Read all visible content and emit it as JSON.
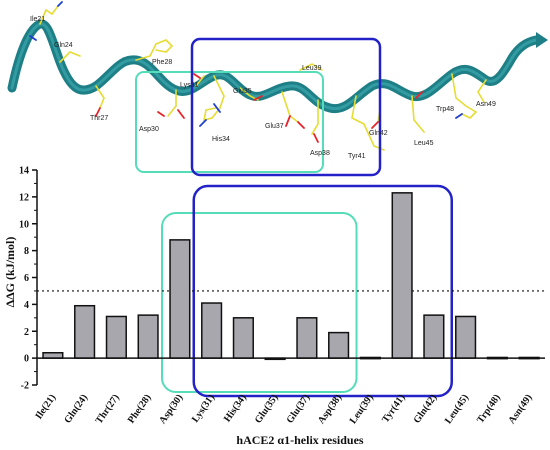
{
  "structure": {
    "residue_labels": [
      {
        "id": "ile21",
        "text": "Ile21"
      },
      {
        "id": "gln24",
        "text": "Gln24"
      },
      {
        "id": "phe28",
        "text": "Phe28"
      },
      {
        "id": "thr27",
        "text": "Thr27"
      },
      {
        "id": "lys31",
        "text": "Lys31"
      },
      {
        "id": "asp30",
        "text": "Asp30"
      },
      {
        "id": "glu35",
        "text": "Glu35"
      },
      {
        "id": "his34",
        "text": "His34"
      },
      {
        "id": "leu39",
        "text": "Leu39"
      },
      {
        "id": "glu37",
        "text": "Glu37"
      },
      {
        "id": "asp38",
        "text": "Asp38"
      },
      {
        "id": "gln42",
        "text": "Gln42"
      },
      {
        "id": "tyr41",
        "text": "Tyr41"
      },
      {
        "id": "trp48",
        "text": "Trp48"
      },
      {
        "id": "asn49",
        "text": "Asn49"
      },
      {
        "id": "leu45",
        "text": "Leu45"
      }
    ],
    "colors": {
      "helix": "#1f7f86",
      "sidechain": "#e6dc33",
      "oxygen": "#e8242a",
      "nitrogen": "#1f3fd1",
      "box_cyan": "#55dcb8",
      "box_blue": "#2222c8"
    }
  },
  "chart_data": {
    "type": "bar",
    "categories": [
      "Ile(21)",
      "Gln(24)",
      "Thr(27)",
      "Phe(28)",
      "Asp(30)",
      "Lys(31)",
      "His(34)",
      "Glu(35)",
      "Glu(37)",
      "Asp(38)",
      "Leu(39)",
      "Tyr(41)",
      "Gln(42)",
      "Leu(45)",
      "Trp(48)",
      "Asn(49)"
    ],
    "values": [
      0.4,
      3.9,
      3.1,
      3.2,
      8.8,
      4.1,
      3.0,
      -0.05,
      3.0,
      1.9,
      0.05,
      12.3,
      3.2,
      3.1,
      0.05,
      0.05
    ],
    "ylabel": "ΔΔG (kJ/mol)",
    "xlabel": "hACE2 α1-helix residues",
    "ylim": [
      -2,
      14
    ],
    "yticks": [
      -2,
      0,
      2,
      4,
      6,
      8,
      10,
      12,
      14
    ],
    "threshold": 5,
    "bar_color": "#a8a7ad",
    "highlight_boxes": [
      {
        "name": "cyan",
        "from": "Asp(30)",
        "to": "Asp(38)",
        "color": "#55dcb8"
      },
      {
        "name": "blue",
        "from": "Lys(31)",
        "to": "Gln(42)",
        "color": "#2222c8"
      }
    ]
  }
}
